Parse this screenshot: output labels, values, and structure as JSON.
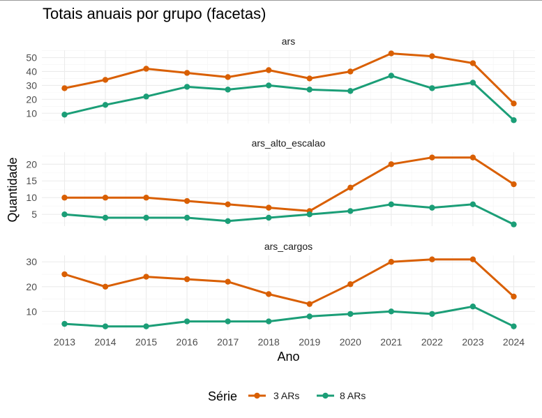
{
  "chart_data": {
    "type": "line",
    "title": "Totais anuais por grupo (facetas)",
    "xlabel": "Ano",
    "ylabel": "Quantidade",
    "x": [
      2013,
      2014,
      2015,
      2016,
      2017,
      2018,
      2019,
      2020,
      2021,
      2022,
      2023,
      2024
    ],
    "legend": {
      "title": "Série",
      "position": "bottom"
    },
    "grid": true,
    "colors": {
      "3 ARs": "#D95F02",
      "8 ARs": "#1B9E77"
    },
    "facets": [
      {
        "name": "ars",
        "yticks": [
          10,
          20,
          30,
          40,
          50
        ],
        "ylim": [
          2.6,
          55.3
        ],
        "series": [
          {
            "name": "3 ARs",
            "values": [
              28,
              34,
              42,
              39,
              36,
              41,
              35,
              40,
              53,
              51,
              46,
              17
            ]
          },
          {
            "name": "8 ARs",
            "values": [
              9,
              16,
              22,
              29,
              27,
              30,
              27,
              26,
              37,
              28,
              32,
              5
            ]
          }
        ]
      },
      {
        "name": "ars_alto_escalao",
        "yticks": [
          5,
          10,
          15,
          20
        ],
        "ylim": [
          1.5,
          23.6
        ],
        "series": [
          {
            "name": "3 ARs",
            "values": [
              10,
              10,
              10,
              9,
              8,
              7,
              6,
              13,
              20,
              22,
              22,
              14
            ]
          },
          {
            "name": "8 ARs",
            "values": [
              5,
              4,
              4,
              4,
              3,
              4,
              5,
              6,
              8,
              7,
              8,
              2
            ]
          }
        ]
      },
      {
        "name": "ars_cargos",
        "yticks": [
          10,
          20,
          30
        ],
        "ylim": [
          2.5,
          32.6
        ],
        "series": [
          {
            "name": "3 ARs",
            "values": [
              25,
              20,
              24,
              23,
              22,
              17,
              13,
              21,
              30,
              31,
              31,
              16
            ]
          },
          {
            "name": "8 ARs",
            "values": [
              5,
              4,
              4,
              6,
              6,
              6,
              8,
              9,
              10,
              9,
              12,
              4
            ]
          }
        ]
      }
    ]
  }
}
